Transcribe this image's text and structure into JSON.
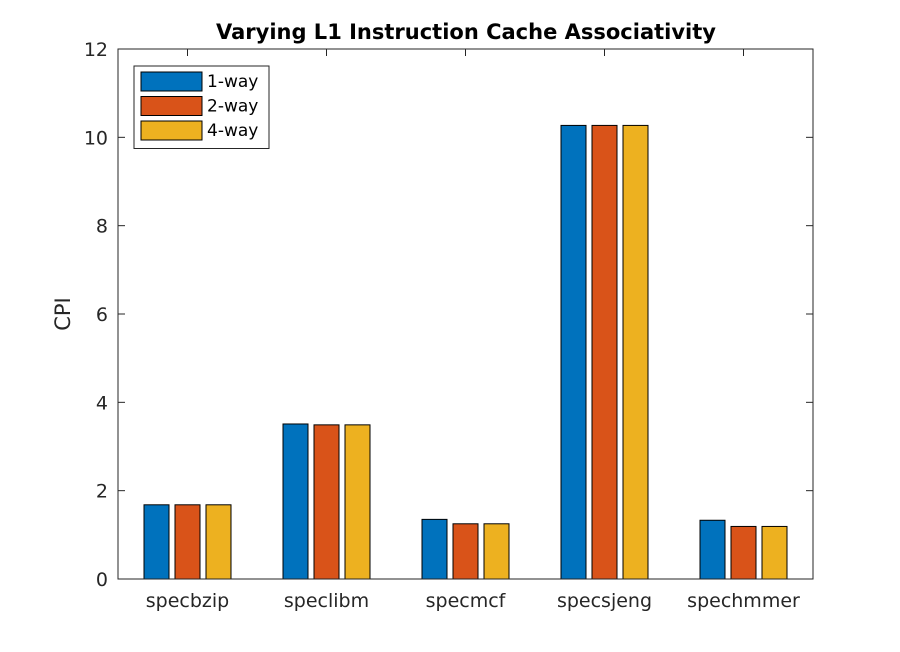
{
  "chart_data": {
    "type": "bar",
    "title": "Varying L1 Instruction Cache Associativity",
    "xlabel": "",
    "ylabel": "CPI",
    "ylim": [
      0,
      12
    ],
    "yticks": [
      0,
      2,
      4,
      6,
      8,
      10,
      12
    ],
    "categories": [
      "specbzip",
      "speclibm",
      "specmcf",
      "specsjeng",
      "spechmmer"
    ],
    "series": [
      {
        "name": "1-way",
        "color": "#0072BD",
        "values": [
          1.68,
          3.51,
          1.35,
          10.27,
          1.33
        ]
      },
      {
        "name": "2-way",
        "color": "#D95319",
        "values": [
          1.68,
          3.49,
          1.25,
          10.27,
          1.19
        ]
      },
      {
        "name": "4-way",
        "color": "#EDB120",
        "values": [
          1.68,
          3.49,
          1.25,
          10.27,
          1.19
        ]
      }
    ],
    "legend_position": "top-left",
    "grid": false
  }
}
